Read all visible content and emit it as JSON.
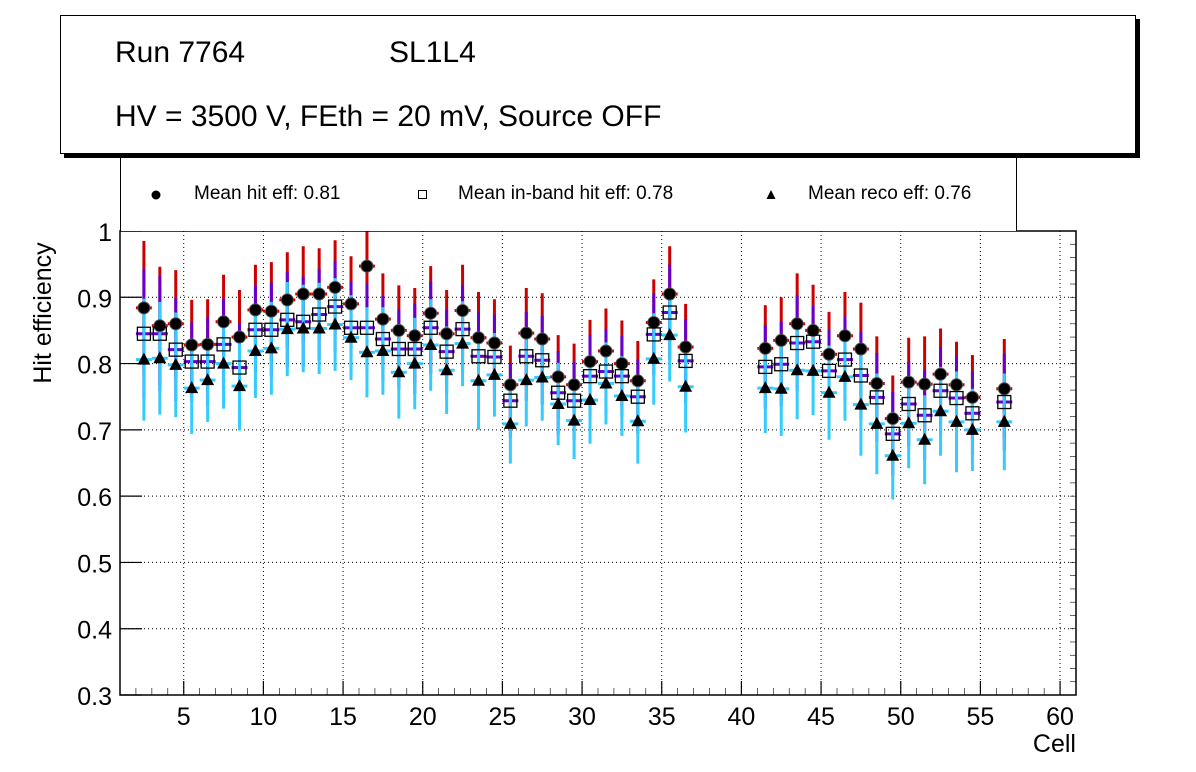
{
  "title": {
    "run_label": "Run 7764",
    "layer_label": "SL1L4",
    "conditions": "HV = 3500 V, FEth = 20 mV, Source OFF"
  },
  "legend": [
    {
      "label": "Mean hit  eff: 0.81",
      "marker": "filled-circle"
    },
    {
      "label": "Mean in-band hit eff: 0.78",
      "marker": "open-square"
    },
    {
      "label": "Mean reco eff: 0.76",
      "marker": "filled-triangle"
    }
  ],
  "colors": {
    "hit_error": "#cc0000",
    "inband_error": "#6600cc",
    "reco_error": "#33ccff",
    "marker": "#000000",
    "grid": "#000000"
  },
  "chart_data": {
    "type": "scatter",
    "title": "Run 7764  SL1L4 — HV = 3500 V, FEth = 20 mV, Source OFF",
    "xlabel": "Cell",
    "ylabel": "Hit efficiency",
    "xlim": [
      1,
      61
    ],
    "ylim": [
      0.3,
      1.0
    ],
    "xticks": [
      5,
      10,
      15,
      20,
      25,
      30,
      35,
      40,
      45,
      50,
      55,
      60
    ],
    "xtick_labels": [
      "5",
      "10",
      "15",
      "20",
      "25",
      "30",
      "35",
      "40",
      "45",
      "50",
      "55",
      "60"
    ],
    "yticks": [
      0.3,
      0.4,
      0.5,
      0.6,
      0.7,
      0.8,
      0.9,
      1.0
    ],
    "ytick_labels": [
      "0.3",
      "0.4",
      "0.5",
      "0.6",
      "0.7",
      "0.8",
      "0.9",
      "1"
    ],
    "grid": true,
    "legend_position": "top",
    "x": [
      2.5,
      3.5,
      4.5,
      5.5,
      6.5,
      7.5,
      8.5,
      9.5,
      10.5,
      11.5,
      12.5,
      13.5,
      14.5,
      15.5,
      16.5,
      17.5,
      18.5,
      19.5,
      20.5,
      21.5,
      22.5,
      23.5,
      24.5,
      25.5,
      26.5,
      27.5,
      28.5,
      29.5,
      30.5,
      31.5,
      32.5,
      33.5,
      34.5,
      35.5,
      36.5,
      41.5,
      42.5,
      43.5,
      44.5,
      45.5,
      46.5,
      47.5,
      48.5,
      49.5,
      50.5,
      51.5,
      52.5,
      53.5,
      54.5,
      56.5
    ],
    "series": [
      {
        "name": "Mean hit  eff: 0.81",
        "marker": "filled-circle",
        "values": [
          0.884,
          0.857,
          0.86,
          0.828,
          0.829,
          0.863,
          0.84,
          0.881,
          0.879,
          0.896,
          0.905,
          0.905,
          0.915,
          0.89,
          0.947,
          0.867,
          0.85,
          0.842,
          0.876,
          0.845,
          0.88,
          0.839,
          0.831,
          0.768,
          0.846,
          0.837,
          0.78,
          0.768,
          0.803,
          0.819,
          0.8,
          0.774,
          0.862,
          0.905,
          0.825,
          0.823,
          0.835,
          0.86,
          0.85,
          0.814,
          0.842,
          0.822,
          0.77,
          0.717,
          0.772,
          0.769,
          0.784,
          0.768,
          0.749,
          0.762
        ],
        "errors": [
          0.101,
          0.089,
          0.081,
          0.068,
          0.068,
          0.071,
          0.071,
          0.068,
          0.074,
          0.072,
          0.072,
          0.069,
          0.071,
          0.072,
          0.08,
          0.069,
          0.068,
          0.072,
          0.071,
          0.066,
          0.069,
          0.069,
          0.066,
          0.059,
          0.068,
          0.069,
          0.063,
          0.062,
          0.063,
          0.064,
          0.065,
          0.06,
          0.065,
          0.072,
          0.065,
          0.065,
          0.065,
          0.076,
          0.069,
          0.064,
          0.066,
          0.07,
          0.071,
          0.065,
          0.067,
          0.072,
          0.069,
          0.065,
          0.064,
          0.075
        ]
      },
      {
        "name": "Mean in-band hit eff: 0.78",
        "marker": "open-square",
        "values": [
          0.845,
          0.845,
          0.821,
          0.803,
          0.803,
          0.829,
          0.794,
          0.851,
          0.851,
          0.866,
          0.863,
          0.874,
          0.886,
          0.854,
          0.854,
          0.837,
          0.822,
          0.822,
          0.854,
          0.818,
          0.852,
          0.811,
          0.81,
          0.744,
          0.811,
          0.805,
          0.756,
          0.744,
          0.781,
          0.788,
          0.781,
          0.75,
          0.844,
          0.877,
          0.804,
          0.795,
          0.799,
          0.831,
          0.833,
          0.789,
          0.806,
          0.782,
          0.749,
          0.694,
          0.739,
          0.722,
          0.759,
          0.748,
          0.725,
          0.742
        ],
        "errors": [
          0.098,
          0.087,
          0.078,
          0.059,
          0.067,
          0.069,
          0.067,
          0.066,
          0.071,
          0.072,
          0.068,
          0.069,
          0.069,
          0.07,
          0.067,
          0.065,
          0.06,
          0.068,
          0.07,
          0.063,
          0.066,
          0.068,
          0.064,
          0.056,
          0.067,
          0.067,
          0.063,
          0.059,
          0.062,
          0.064,
          0.061,
          0.056,
          0.062,
          0.072,
          0.063,
          0.063,
          0.064,
          0.072,
          0.054,
          0.062,
          0.065,
          0.066,
          0.067,
          0.063,
          0.064,
          0.068,
          0.066,
          0.063,
          0.063,
          0.073
        ]
      },
      {
        "name": "Mean reco eff: 0.76",
        "marker": "filled-triangle",
        "values": [
          0.806,
          0.808,
          0.798,
          0.763,
          0.775,
          0.8,
          0.766,
          0.819,
          0.823,
          0.852,
          0.853,
          0.853,
          0.859,
          0.839,
          0.817,
          0.819,
          0.787,
          0.8,
          0.828,
          0.79,
          0.83,
          0.774,
          0.783,
          0.709,
          0.775,
          0.779,
          0.739,
          0.714,
          0.745,
          0.77,
          0.751,
          0.713,
          0.807,
          0.843,
          0.765,
          0.763,
          0.762,
          0.79,
          0.789,
          0.756,
          0.78,
          0.738,
          0.709,
          0.661,
          0.71,
          0.685,
          0.728,
          0.712,
          0.7,
          0.712
        ],
        "errors": [
          0.092,
          0.085,
          0.079,
          0.069,
          0.063,
          0.068,
          0.067,
          0.071,
          0.07,
          0.071,
          0.066,
          0.069,
          0.07,
          0.064,
          0.068,
          0.066,
          0.07,
          0.069,
          0.069,
          0.066,
          0.064,
          0.074,
          0.063,
          0.06,
          0.07,
          0.065,
          0.062,
          0.058,
          0.066,
          0.062,
          0.06,
          0.064,
          0.069,
          0.07,
          0.069,
          0.068,
          0.071,
          0.074,
          0.067,
          0.071,
          0.066,
          0.077,
          0.076,
          0.066,
          0.068,
          0.067,
          0.067,
          0.076,
          0.062,
          0.073
        ]
      }
    ]
  }
}
